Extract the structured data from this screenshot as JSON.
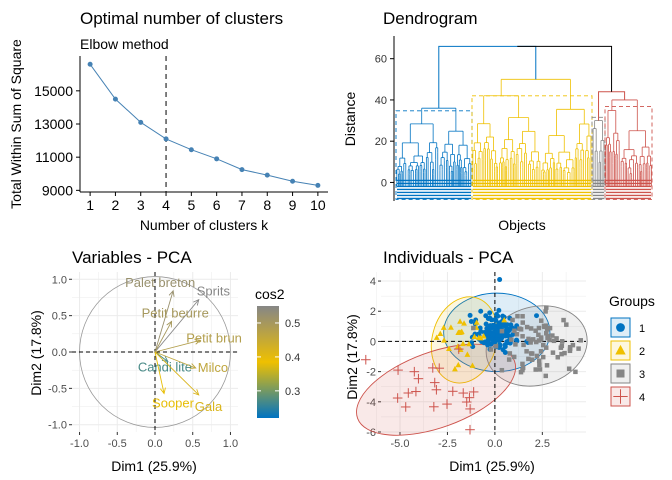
{
  "panels": {
    "elbow": {
      "title": "Optimal number of clusters",
      "subtitle": "Elbow method",
      "xlabel": "Number of clusters k",
      "ylabel": "Total Within Sum of Square"
    },
    "dendro": {
      "title": "Dendrogram",
      "xlabel": "Objects",
      "ylabel": "Distance"
    },
    "varpca": {
      "title": "Variables - PCA",
      "xlabel": "Dim1 (25.9%)",
      "ylabel": "Dim2 (17.8%)",
      "legend_title": "cos2"
    },
    "indpca": {
      "title": "Individuals - PCA",
      "xlabel": "Dim1 (25.9%)",
      "ylabel": "Dim2 (17.8%)",
      "legend_title": "Groups"
    }
  },
  "chart_data": [
    {
      "id": "elbow",
      "type": "line",
      "title": "Optimal number of clusters",
      "subtitle": "Elbow method",
      "xlabel": "Number of clusters k",
      "ylabel": "Total Within Sum of Square",
      "x": [
        1,
        2,
        3,
        4,
        5,
        6,
        7,
        8,
        9,
        10
      ],
      "y": [
        16600,
        14500,
        13100,
        12100,
        11450,
        10900,
        10250,
        9920,
        9550,
        9300
      ],
      "xlim": [
        0.6,
        10.4
      ],
      "ylim": [
        8900,
        17100
      ],
      "yticks": [
        9000,
        11000,
        13000,
        15000
      ],
      "ytick_labels": [
        "9000",
        "11000",
        "13000",
        "15000"
      ],
      "xticks": [
        1,
        2,
        3,
        4,
        5,
        6,
        7,
        8,
        9,
        10
      ],
      "vline_x": 4,
      "line_color": "#4682B4",
      "grid": false
    },
    {
      "id": "dendro",
      "type": "dendrogram",
      "title": "Dendrogram",
      "xlabel": "Objects",
      "ylabel": "Distance",
      "ylim": [
        -9,
        71
      ],
      "yticks": [
        0,
        20,
        40,
        60
      ],
      "root_height": 66,
      "clusters": [
        {
          "group": 1,
          "color": "#0073C2",
          "height": 36
        },
        {
          "group": 2,
          "color": "#EFC000",
          "height": 50
        },
        {
          "group": 3,
          "color": "#868686",
          "height": 30
        },
        {
          "group": 4,
          "color": "#CD534C",
          "height": 40
        }
      ],
      "grid": false
    },
    {
      "id": "varpca",
      "type": "scatter",
      "title": "Variables - PCA",
      "xlabel": "Dim1 (25.9%)",
      "ylabel": "Dim2 (17.8%)",
      "xlim": [
        -1.1,
        1.1
      ],
      "ylim": [
        -1.1,
        1.1
      ],
      "xticks": [
        -1.0,
        -0.5,
        0.0,
        0.5,
        1.0
      ],
      "yticks": [
        -1.0,
        -0.5,
        0.0,
        0.5,
        1.0
      ],
      "legend": {
        "title": "cos2",
        "min": 0.22,
        "max": 0.55,
        "ticks": [
          0.3,
          0.4,
          0.5
        ]
      },
      "arrows": [
        {
          "label": "Palet breton",
          "x": 0.24,
          "y": 0.84,
          "cos2": 0.52
        },
        {
          "label": "Sprits",
          "x": 0.58,
          "y": 0.72,
          "cos2": 0.55
        },
        {
          "label": "Petit beurre",
          "x": 0.22,
          "y": 0.42,
          "cos2": 0.5
        },
        {
          "label": "Petit brun",
          "x": 0.6,
          "y": 0.16,
          "cos2": 0.48
        },
        {
          "label": "Candi lite",
          "x": 0.17,
          "y": -0.13,
          "cos2": 0.27
        },
        {
          "label": "Milco",
          "x": 0.54,
          "y": -0.22,
          "cos2": 0.46
        },
        {
          "label": "Sooper",
          "x": 0.12,
          "y": -0.57,
          "cos2": 0.38
        },
        {
          "label": "Gala",
          "x": 0.58,
          "y": -0.59,
          "cos2": 0.42
        }
      ],
      "grid": true
    },
    {
      "id": "indpca",
      "type": "scatter",
      "title": "Individuals - PCA",
      "xlabel": "Dim1 (25.9%)",
      "ylabel": "Dim2 (17.8%)",
      "xlim": [
        -6.0,
        4.8
      ],
      "ylim": [
        -6.0,
        4.6
      ],
      "xticks": [
        -5.0,
        -2.5,
        0.0,
        2.5
      ],
      "xtick_labels": [
        "-5.0",
        "-2.5",
        "0.0",
        "2.5"
      ],
      "yticks": [
        -6,
        -4,
        -2,
        0,
        2,
        4
      ],
      "legend": {
        "title": "Groups",
        "entries": [
          "1",
          "2",
          "3",
          "4"
        ]
      },
      "series": [
        {
          "name": "1",
          "color": "#0073C2",
          "shape": "circle",
          "ellipse": {
            "cx": 0.1,
            "cy": 0.6,
            "rx": 2.8,
            "ry": 2.6,
            "angle": 0
          }
        },
        {
          "name": "2",
          "color": "#EFC000",
          "shape": "triangle",
          "ellipse": {
            "cx": -1.6,
            "cy": 0.1,
            "rx": 1.7,
            "ry": 2.9,
            "angle": 15
          }
        },
        {
          "name": "3",
          "color": "#868686",
          "shape": "square",
          "ellipse": {
            "cx": 2.2,
            "cy": -0.3,
            "rx": 2.7,
            "ry": 2.6,
            "angle": -15
          }
        },
        {
          "name": "4",
          "color": "#CD534C",
          "shape": "cross",
          "ellipse": {
            "cx": -3.1,
            "cy": -3.2,
            "rx": 4.4,
            "ry": 2.5,
            "angle": -20
          }
        }
      ],
      "grid": true
    }
  ]
}
